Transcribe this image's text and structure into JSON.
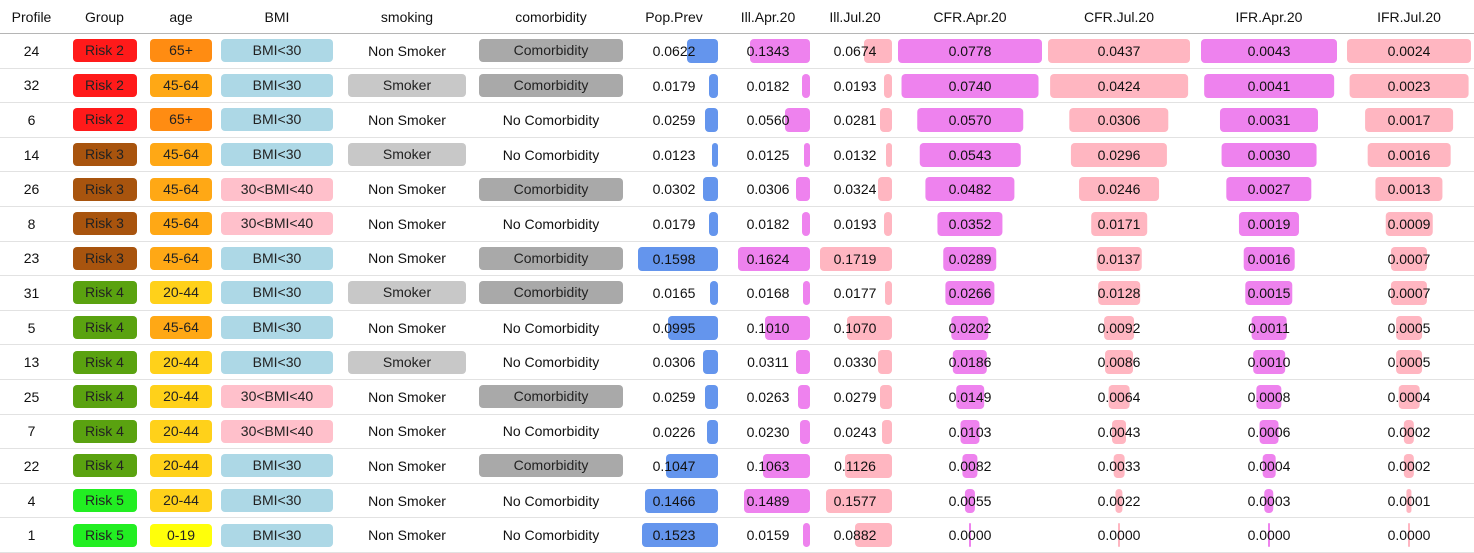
{
  "columns": [
    "Profile",
    "Group",
    "age",
    "BMI",
    "smoking",
    "comorbidity",
    "Pop.Prev",
    "Ill.Apr.20",
    "Ill.Jul.20",
    "CFR.Apr.20",
    "CFR.Jul.20",
    "IFR.Apr.20",
    "IFR.Jul.20"
  ],
  "colors": {
    "risk2": "#ff1a1a",
    "risk3": "#a8540e",
    "risk4": "#5aa210",
    "risk5": "#22ee22",
    "age65": "#ff8c12",
    "age4564": "#ffa815",
    "age2044": "#ffd11a",
    "age019": "#ffff0a",
    "bmi_blue": "#add8e6",
    "bmi_pink": "#ffc0cb",
    "gray_light": "#c8c8c8",
    "gray_dark": "#a9a9a9",
    "bar_blue": "#6495ed",
    "bar_violet": "#ee82ee",
    "bar_pink": "#ffb6c1"
  },
  "maxima": {
    "pop": 0.1598,
    "ill_apr": 0.1624,
    "ill_jul": 0.1719,
    "cfr_apr": 0.0778,
    "cfr_jul": 0.0437,
    "ifr_apr": 0.0043,
    "ifr_jul": 0.0024
  },
  "rows": [
    {
      "profile": "24",
      "group": "Risk 2",
      "age": "65+",
      "bmi": "BMI<30",
      "smoking": "Non Smoker",
      "comorbidity": "Comorbidity",
      "pop": "0.0622",
      "ill_apr": "0.1343",
      "ill_jul": "0.0674",
      "cfr_apr": "0.0778",
      "cfr_jul": "0.0437",
      "ifr_apr": "0.0043",
      "ifr_jul": "0.0024"
    },
    {
      "profile": "32",
      "group": "Risk 2",
      "age": "45-64",
      "bmi": "BMI<30",
      "smoking": "Smoker",
      "comorbidity": "Comorbidity",
      "pop": "0.0179",
      "ill_apr": "0.0182",
      "ill_jul": "0.0193",
      "cfr_apr": "0.0740",
      "cfr_jul": "0.0424",
      "ifr_apr": "0.0041",
      "ifr_jul": "0.0023"
    },
    {
      "profile": "6",
      "group": "Risk 2",
      "age": "65+",
      "bmi": "BMI<30",
      "smoking": "Non Smoker",
      "comorbidity": "No Comorbidity",
      "pop": "0.0259",
      "ill_apr": "0.0560",
      "ill_jul": "0.0281",
      "cfr_apr": "0.0570",
      "cfr_jul": "0.0306",
      "ifr_apr": "0.0031",
      "ifr_jul": "0.0017"
    },
    {
      "profile": "14",
      "group": "Risk 3",
      "age": "45-64",
      "bmi": "BMI<30",
      "smoking": "Smoker",
      "comorbidity": "No Comorbidity",
      "pop": "0.0123",
      "ill_apr": "0.0125",
      "ill_jul": "0.0132",
      "cfr_apr": "0.0543",
      "cfr_jul": "0.0296",
      "ifr_apr": "0.0030",
      "ifr_jul": "0.0016"
    },
    {
      "profile": "26",
      "group": "Risk 3",
      "age": "45-64",
      "bmi": "30<BMI<40",
      "smoking": "Non Smoker",
      "comorbidity": "Comorbidity",
      "pop": "0.0302",
      "ill_apr": "0.0306",
      "ill_jul": "0.0324",
      "cfr_apr": "0.0482",
      "cfr_jul": "0.0246",
      "ifr_apr": "0.0027",
      "ifr_jul": "0.0013"
    },
    {
      "profile": "8",
      "group": "Risk 3",
      "age": "45-64",
      "bmi": "30<BMI<40",
      "smoking": "Non Smoker",
      "comorbidity": "No Comorbidity",
      "pop": "0.0179",
      "ill_apr": "0.0182",
      "ill_jul": "0.0193",
      "cfr_apr": "0.0352",
      "cfr_jul": "0.0171",
      "ifr_apr": "0.0019",
      "ifr_jul": "0.0009"
    },
    {
      "profile": "23",
      "group": "Risk 3",
      "age": "45-64",
      "bmi": "BMI<30",
      "smoking": "Non Smoker",
      "comorbidity": "Comorbidity",
      "pop": "0.1598",
      "ill_apr": "0.1624",
      "ill_jul": "0.1719",
      "cfr_apr": "0.0289",
      "cfr_jul": "0.0137",
      "ifr_apr": "0.0016",
      "ifr_jul": "0.0007"
    },
    {
      "profile": "31",
      "group": "Risk 4",
      "age": "20-44",
      "bmi": "BMI<30",
      "smoking": "Smoker",
      "comorbidity": "Comorbidity",
      "pop": "0.0165",
      "ill_apr": "0.0168",
      "ill_jul": "0.0177",
      "cfr_apr": "0.0266",
      "cfr_jul": "0.0128",
      "ifr_apr": "0.0015",
      "ifr_jul": "0.0007"
    },
    {
      "profile": "5",
      "group": "Risk 4",
      "age": "45-64",
      "bmi": "BMI<30",
      "smoking": "Non Smoker",
      "comorbidity": "No Comorbidity",
      "pop": "0.0995",
      "ill_apr": "0.1010",
      "ill_jul": "0.1070",
      "cfr_apr": "0.0202",
      "cfr_jul": "0.0092",
      "ifr_apr": "0.0011",
      "ifr_jul": "0.0005"
    },
    {
      "profile": "13",
      "group": "Risk 4",
      "age": "20-44",
      "bmi": "BMI<30",
      "smoking": "Smoker",
      "comorbidity": "No Comorbidity",
      "pop": "0.0306",
      "ill_apr": "0.0311",
      "ill_jul": "0.0330",
      "cfr_apr": "0.0186",
      "cfr_jul": "0.0086",
      "ifr_apr": "0.0010",
      "ifr_jul": "0.0005"
    },
    {
      "profile": "25",
      "group": "Risk 4",
      "age": "20-44",
      "bmi": "30<BMI<40",
      "smoking": "Non Smoker",
      "comorbidity": "Comorbidity",
      "pop": "0.0259",
      "ill_apr": "0.0263",
      "ill_jul": "0.0279",
      "cfr_apr": "0.0149",
      "cfr_jul": "0.0064",
      "ifr_apr": "0.0008",
      "ifr_jul": "0.0004"
    },
    {
      "profile": "7",
      "group": "Risk 4",
      "age": "20-44",
      "bmi": "30<BMI<40",
      "smoking": "Non Smoker",
      "comorbidity": "No Comorbidity",
      "pop": "0.0226",
      "ill_apr": "0.0230",
      "ill_jul": "0.0243",
      "cfr_apr": "0.0103",
      "cfr_jul": "0.0043",
      "ifr_apr": "0.0006",
      "ifr_jul": "0.0002"
    },
    {
      "profile": "22",
      "group": "Risk 4",
      "age": "20-44",
      "bmi": "BMI<30",
      "smoking": "Non Smoker",
      "comorbidity": "Comorbidity",
      "pop": "0.1047",
      "ill_apr": "0.1063",
      "ill_jul": "0.1126",
      "cfr_apr": "0.0082",
      "cfr_jul": "0.0033",
      "ifr_apr": "0.0004",
      "ifr_jul": "0.0002"
    },
    {
      "profile": "4",
      "group": "Risk 5",
      "age": "20-44",
      "bmi": "BMI<30",
      "smoking": "Non Smoker",
      "comorbidity": "No Comorbidity",
      "pop": "0.1466",
      "ill_apr": "0.1489",
      "ill_jul": "0.1577",
      "cfr_apr": "0.0055",
      "cfr_jul": "0.0022",
      "ifr_apr": "0.0003",
      "ifr_jul": "0.0001"
    },
    {
      "profile": "1",
      "group": "Risk 5",
      "age": "0-19",
      "bmi": "BMI<30",
      "smoking": "Non Smoker",
      "comorbidity": "No Comorbidity",
      "pop": "0.1523",
      "ill_apr": "0.0159",
      "ill_jul": "0.0882",
      "cfr_apr": "0.0000",
      "cfr_jul": "0.0000",
      "ifr_apr": "0.0000",
      "ifr_jul": "0.0000"
    }
  ]
}
